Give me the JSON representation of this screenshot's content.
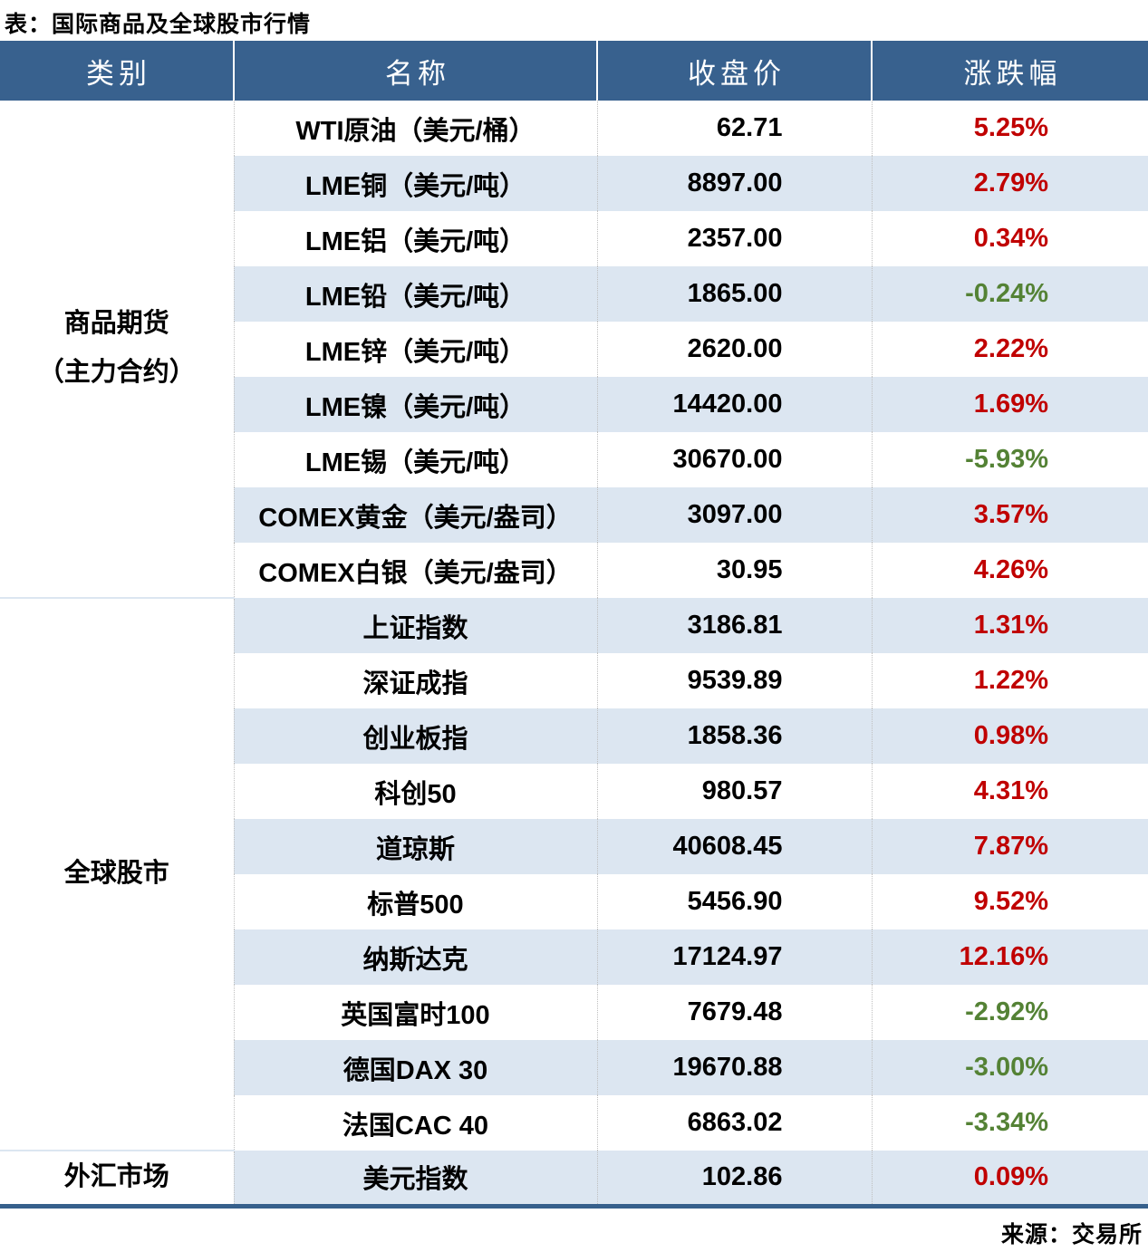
{
  "title": "表：国际商品及全球股市行情",
  "source": "来源：交易所",
  "colors": {
    "header_bg": "#38618E",
    "header_text": "#FFFFFF",
    "row_alt_bg": "#DCE6F1",
    "up_red": "#C00000",
    "down_green": "#548235",
    "bottom_border": "#36608C",
    "divider_dotted": "#BFBFBF"
  },
  "chart_data": {
    "type": "table",
    "title": "表：国际商品及全球股市行情",
    "columns": [
      "类别",
      "名称",
      "收盘价",
      "涨跌幅"
    ],
    "groups": [
      {
        "category": "商品期货\n（主力合约）",
        "rows": [
          {
            "name": "WTI原油（美元/桶）",
            "close": "62.71",
            "change": "5.25%",
            "dir": "up"
          },
          {
            "name": "LME铜（美元/吨）",
            "close": "8897.00",
            "change": "2.79%",
            "dir": "up"
          },
          {
            "name": "LME铝（美元/吨）",
            "close": "2357.00",
            "change": "0.34%",
            "dir": "up"
          },
          {
            "name": "LME铅（美元/吨）",
            "close": "1865.00",
            "change": "-0.24%",
            "dir": "down"
          },
          {
            "name": "LME锌（美元/吨）",
            "close": "2620.00",
            "change": "2.22%",
            "dir": "up"
          },
          {
            "name": "LME镍（美元/吨）",
            "close": "14420.00",
            "change": "1.69%",
            "dir": "up"
          },
          {
            "name": "LME锡（美元/吨）",
            "close": "30670.00",
            "change": "-5.93%",
            "dir": "down"
          },
          {
            "name": "COMEX黄金（美元/盎司）",
            "close": "3097.00",
            "change": "3.57%",
            "dir": "up"
          },
          {
            "name": "COMEX白银（美元/盎司）",
            "close": "30.95",
            "change": "4.26%",
            "dir": "up"
          }
        ]
      },
      {
        "category": "全球股市",
        "rows": [
          {
            "name": "上证指数",
            "close": "3186.81",
            "change": "1.31%",
            "dir": "up"
          },
          {
            "name": "深证成指",
            "close": "9539.89",
            "change": "1.22%",
            "dir": "up"
          },
          {
            "name": "创业板指",
            "close": "1858.36",
            "change": "0.98%",
            "dir": "up"
          },
          {
            "name": "科创50",
            "close": "980.57",
            "change": "4.31%",
            "dir": "up"
          },
          {
            "name": "道琼斯",
            "close": "40608.45",
            "change": "7.87%",
            "dir": "up"
          },
          {
            "name": "标普500",
            "close": "5456.90",
            "change": "9.52%",
            "dir": "up"
          },
          {
            "name": "纳斯达克",
            "close": "17124.97",
            "change": "12.16%",
            "dir": "up"
          },
          {
            "name": "英国富时100",
            "close": "7679.48",
            "change": "-2.92%",
            "dir": "down"
          },
          {
            "name": "德国DAX 30",
            "close": "19670.88",
            "change": "-3.00%",
            "dir": "down"
          },
          {
            "name": "法国CAC 40",
            "close": "6863.02",
            "change": "-3.34%",
            "dir": "down"
          }
        ]
      },
      {
        "category": "外汇市场",
        "rows": [
          {
            "name": "美元指数",
            "close": "102.86",
            "change": "0.09%",
            "dir": "up"
          }
        ]
      }
    ]
  }
}
